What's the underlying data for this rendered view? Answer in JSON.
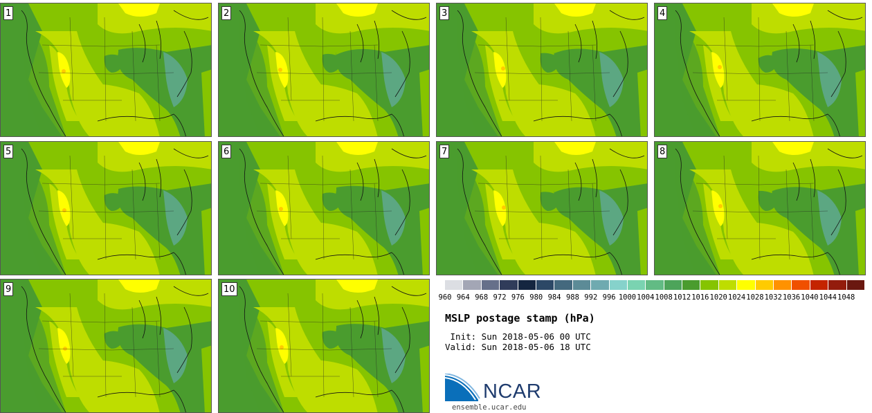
{
  "stamps": [
    {
      "label": "1"
    },
    {
      "label": "2"
    },
    {
      "label": "3"
    },
    {
      "label": "4"
    },
    {
      "label": "5"
    },
    {
      "label": "6"
    },
    {
      "label": "7"
    },
    {
      "label": "8"
    },
    {
      "label": "9"
    },
    {
      "label": "10"
    }
  ],
  "colorbar": {
    "ticks": [
      "960",
      "964",
      "968",
      "972",
      "976",
      "980",
      "984",
      "988",
      "992",
      "996",
      "1000",
      "1004",
      "1008",
      "1012",
      "1016",
      "1020",
      "1024",
      "1028",
      "1032",
      "1036",
      "1040",
      "1044",
      "1048"
    ],
    "colors": [
      "#dcdee3",
      "#a3a6b5",
      "#66708a",
      "#303c5a",
      "#152640",
      "#2c4866",
      "#44697e",
      "#5c8b97",
      "#6faab0",
      "#86d2cb",
      "#7ad3b1",
      "#62bb84",
      "#4da45a",
      "#4a9c2e",
      "#86c400",
      "#bedd00",
      "#ffff00",
      "#ffcb00",
      "#ff9200",
      "#f05000",
      "#c42400",
      "#931c0c",
      "#6a1810"
    ]
  },
  "title": "MSLP postage stamp (hPa)",
  "init": " Init: Sun 2018-05-06 00 UTC",
  "valid": "Valid: Sun 2018-05-06 18 UTC",
  "logo": {
    "text": "NCAR",
    "site": "ensemble.ucar.edu"
  },
  "colors": {
    "dark_green": "#4a9c2e",
    "mid_green": "#86c400",
    "light_yellow": "#bedd00",
    "yellow": "#ffff00",
    "orange": "#ffcb00",
    "teal": "#5fa990"
  }
}
